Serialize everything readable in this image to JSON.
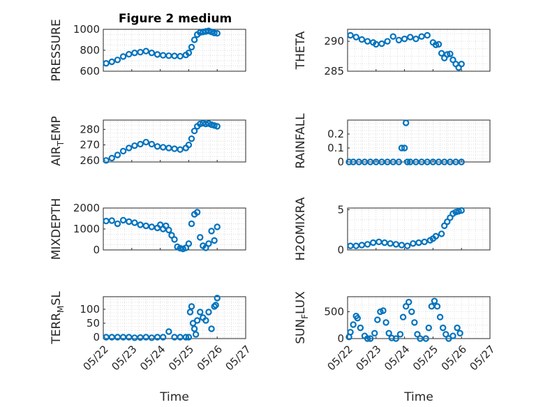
{
  "figure_title": "Figure 2 medium",
  "marker_color": "#0072BD",
  "chart_data": [
    {
      "type": "scatter",
      "ylabel": "PRESSURE",
      "xlabel": "",
      "ylim": [
        600,
        1000
      ],
      "yticks": [
        600,
        800,
        1000
      ],
      "xticks": [
        "05/22",
        "05/23",
        "05/24",
        "05/25",
        "05/26",
        "05/27"
      ],
      "xlim_days": [
        22,
        27
      ],
      "grid": true,
      "points": [
        [
          22.1,
          675
        ],
        [
          22.3,
          690
        ],
        [
          22.5,
          708
        ],
        [
          22.7,
          740
        ],
        [
          22.9,
          762
        ],
        [
          23.1,
          775
        ],
        [
          23.3,
          782
        ],
        [
          23.5,
          792
        ],
        [
          23.7,
          775
        ],
        [
          23.9,
          760
        ],
        [
          24.1,
          752
        ],
        [
          24.3,
          748
        ],
        [
          24.5,
          746
        ],
        [
          24.7,
          743
        ],
        [
          24.9,
          755
        ],
        [
          25.0,
          775
        ],
        [
          25.1,
          830
        ],
        [
          25.2,
          900
        ],
        [
          25.3,
          950
        ],
        [
          25.4,
          970
        ],
        [
          25.5,
          975
        ],
        [
          25.6,
          980
        ],
        [
          25.7,
          985
        ],
        [
          25.8,
          975
        ],
        [
          25.9,
          965
        ],
        [
          26.0,
          962
        ]
      ]
    },
    {
      "type": "scatter",
      "ylabel": "THETA",
      "xlabel": "",
      "ylim": [
        285,
        292
      ],
      "yticks": [
        285,
        290
      ],
      "xticks": [
        "05/22",
        "05/23",
        "05/24",
        "05/25",
        "05/26",
        "05/27"
      ],
      "xlim_days": [
        22,
        27
      ],
      "grid": true,
      "points": [
        [
          22.1,
          291.0
        ],
        [
          22.3,
          290.7
        ],
        [
          22.5,
          290.3
        ],
        [
          22.7,
          290.0
        ],
        [
          22.9,
          289.8
        ],
        [
          23.0,
          289.5
        ],
        [
          23.2,
          289.6
        ],
        [
          23.4,
          290.0
        ],
        [
          23.6,
          290.8
        ],
        [
          23.8,
          290.2
        ],
        [
          24.0,
          290.4
        ],
        [
          24.2,
          290.7
        ],
        [
          24.4,
          290.4
        ],
        [
          24.6,
          290.8
        ],
        [
          24.8,
          291.0
        ],
        [
          25.0,
          289.8
        ],
        [
          25.1,
          289.4
        ],
        [
          25.2,
          289.5
        ],
        [
          25.3,
          288.0
        ],
        [
          25.4,
          287.2
        ],
        [
          25.5,
          287.8
        ],
        [
          25.6,
          287.9
        ],
        [
          25.7,
          286.9
        ],
        [
          25.8,
          286.2
        ],
        [
          25.9,
          285.6
        ],
        [
          26.0,
          286.2
        ]
      ]
    },
    {
      "type": "scatter",
      "ylabel": "AIR_TEMP",
      "ylabel_main": "AIR",
      "ylabel_sub": "T",
      "ylabel_rest": "EMP",
      "xlabel": "",
      "ylim": [
        259,
        286
      ],
      "yticks": [
        260,
        270,
        280
      ],
      "xticks": [
        "05/22",
        "05/23",
        "05/24",
        "05/25",
        "05/26",
        "05/27"
      ],
      "xlim_days": [
        22,
        27
      ],
      "grid": true,
      "points": [
        [
          22.1,
          260.0
        ],
        [
          22.3,
          261.5
        ],
        [
          22.5,
          263.5
        ],
        [
          22.7,
          266.0
        ],
        [
          22.9,
          268.0
        ],
        [
          23.1,
          269.5
        ],
        [
          23.3,
          270.5
        ],
        [
          23.5,
          271.8
        ],
        [
          23.7,
          270.5
        ],
        [
          23.9,
          269.0
        ],
        [
          24.1,
          268.5
        ],
        [
          24.3,
          268.0
        ],
        [
          24.5,
          267.5
        ],
        [
          24.7,
          267.0
        ],
        [
          24.9,
          268.0
        ],
        [
          25.0,
          270.0
        ],
        [
          25.1,
          274.0
        ],
        [
          25.2,
          279.0
        ],
        [
          25.3,
          282.0
        ],
        [
          25.4,
          283.5
        ],
        [
          25.5,
          284.0
        ],
        [
          25.6,
          283.5
        ],
        [
          25.7,
          283.8
        ],
        [
          25.8,
          283.0
        ],
        [
          25.9,
          282.5
        ],
        [
          26.0,
          282.0
        ]
      ]
    },
    {
      "type": "scatter",
      "ylabel": "RAINFALL",
      "xlabel": "",
      "ylim": [
        0,
        0.3
      ],
      "yticks": [
        0,
        0.1,
        0.2
      ],
      "xticks": [
        "05/22",
        "05/23",
        "05/24",
        "05/25",
        "05/26",
        "05/27"
      ],
      "xlim_days": [
        22,
        27
      ],
      "grid": true,
      "points": [
        [
          22.05,
          0
        ],
        [
          22.2,
          0
        ],
        [
          22.4,
          0
        ],
        [
          22.6,
          0
        ],
        [
          22.8,
          0
        ],
        [
          23.0,
          0
        ],
        [
          23.2,
          0
        ],
        [
          23.4,
          0
        ],
        [
          23.6,
          0
        ],
        [
          23.8,
          0
        ],
        [
          23.9,
          0.1
        ],
        [
          24.0,
          0.1
        ],
        [
          24.05,
          0.28
        ],
        [
          24.1,
          0
        ],
        [
          24.2,
          0
        ],
        [
          24.4,
          0
        ],
        [
          24.6,
          0
        ],
        [
          24.8,
          0
        ],
        [
          25.0,
          0
        ],
        [
          25.2,
          0
        ],
        [
          25.4,
          0
        ],
        [
          25.6,
          0
        ],
        [
          25.8,
          0
        ],
        [
          26.0,
          0
        ]
      ]
    },
    {
      "type": "scatter",
      "ylabel": "MIXDEPTH",
      "xlabel": "",
      "ylim": [
        0,
        2000
      ],
      "yticks": [
        0,
        1000,
        2000
      ],
      "xticks": [
        "05/22",
        "05/23",
        "05/24",
        "05/25",
        "05/26",
        "05/27"
      ],
      "xlim_days": [
        22,
        27
      ],
      "grid": true,
      "points": [
        [
          22.1,
          1380
        ],
        [
          22.3,
          1400
        ],
        [
          22.5,
          1250
        ],
        [
          22.7,
          1420
        ],
        [
          22.9,
          1350
        ],
        [
          23.1,
          1300
        ],
        [
          23.3,
          1200
        ],
        [
          23.5,
          1150
        ],
        [
          23.7,
          1100
        ],
        [
          23.9,
          1050
        ],
        [
          24.0,
          1200
        ],
        [
          24.1,
          1000
        ],
        [
          24.2,
          1150
        ],
        [
          24.3,
          950
        ],
        [
          24.4,
          700
        ],
        [
          24.5,
          500
        ],
        [
          24.6,
          150
        ],
        [
          24.7,
          80
        ],
        [
          24.8,
          50
        ],
        [
          24.9,
          100
        ],
        [
          25.0,
          300
        ],
        [
          25.1,
          1250
        ],
        [
          25.2,
          1700
        ],
        [
          25.3,
          1800
        ],
        [
          25.4,
          600
        ],
        [
          25.5,
          200
        ],
        [
          25.6,
          100
        ],
        [
          25.7,
          300
        ],
        [
          25.8,
          900
        ],
        [
          25.9,
          450
        ],
        [
          26.0,
          1100
        ]
      ]
    },
    {
      "type": "scatter",
      "ylabel": "H2OMIXRA",
      "xlabel": "",
      "ylim": [
        0,
        5.2
      ],
      "yticks": [
        0,
        5
      ],
      "xticks": [
        "05/22",
        "05/23",
        "05/24",
        "05/25",
        "05/26",
        "05/27"
      ],
      "xlim_days": [
        22,
        27
      ],
      "grid": true,
      "points": [
        [
          22.1,
          0.5
        ],
        [
          22.3,
          0.5
        ],
        [
          22.5,
          0.6
        ],
        [
          22.7,
          0.7
        ],
        [
          22.9,
          0.9
        ],
        [
          23.1,
          1.0
        ],
        [
          23.3,
          0.9
        ],
        [
          23.5,
          0.8
        ],
        [
          23.7,
          0.7
        ],
        [
          23.9,
          0.6
        ],
        [
          24.1,
          0.5
        ],
        [
          24.3,
          0.8
        ],
        [
          24.5,
          0.9
        ],
        [
          24.7,
          1.0
        ],
        [
          24.9,
          1.2
        ],
        [
          25.0,
          1.4
        ],
        [
          25.1,
          1.7
        ],
        [
          25.3,
          2.0
        ],
        [
          25.4,
          3.0
        ],
        [
          25.5,
          3.5
        ],
        [
          25.6,
          4.0
        ],
        [
          25.7,
          4.5
        ],
        [
          25.8,
          4.7
        ],
        [
          25.9,
          4.8
        ],
        [
          26.0,
          4.9
        ]
      ]
    },
    {
      "type": "scatter",
      "ylabel": "TERR_MSL",
      "ylabel_main": "TERR",
      "ylabel_sub": "M",
      "ylabel_rest": "SL",
      "xlabel": "Time",
      "ylim": [
        -5,
        145
      ],
      "yticks": [
        0,
        50,
        100
      ],
      "xticks": [
        "05/22",
        "05/23",
        "05/24",
        "05/25",
        "05/26",
        "05/27"
      ],
      "xlim_days": [
        22,
        27
      ],
      "grid": true,
      "points": [
        [
          22.1,
          0
        ],
        [
          22.3,
          0
        ],
        [
          22.5,
          0
        ],
        [
          22.7,
          0
        ],
        [
          22.9,
          0
        ],
        [
          23.1,
          -2
        ],
        [
          23.3,
          -1
        ],
        [
          23.5,
          0
        ],
        [
          23.7,
          -2
        ],
        [
          23.9,
          0
        ],
        [
          24.1,
          0
        ],
        [
          24.3,
          20
        ],
        [
          24.5,
          0
        ],
        [
          24.7,
          0
        ],
        [
          24.9,
          0
        ],
        [
          25.0,
          0
        ],
        [
          25.05,
          90
        ],
        [
          25.1,
          110
        ],
        [
          25.15,
          50
        ],
        [
          25.2,
          30
        ],
        [
          25.25,
          10
        ],
        [
          25.3,
          60
        ],
        [
          25.4,
          90
        ],
        [
          25.5,
          70
        ],
        [
          25.6,
          60
        ],
        [
          25.7,
          90
        ],
        [
          25.8,
          30
        ],
        [
          25.9,
          110
        ],
        [
          25.95,
          115
        ],
        [
          26.0,
          140
        ]
      ]
    },
    {
      "type": "scatter",
      "ylabel": "SUN_FLUX",
      "ylabel_main": "SUN",
      "ylabel_sub": "F",
      "ylabel_rest": "LUX",
      "xlabel": "Time",
      "ylim": [
        0,
        780
      ],
      "yticks": [
        0,
        500
      ],
      "xticks": [
        "05/22",
        "05/23",
        "05/24",
        "05/25",
        "05/26",
        "05/27"
      ],
      "xlim_days": [
        22,
        27
      ],
      "grid": true,
      "points": [
        [
          22.05,
          30
        ],
        [
          22.1,
          120
        ],
        [
          22.2,
          260
        ],
        [
          22.3,
          420
        ],
        [
          22.35,
          380
        ],
        [
          22.45,
          200
        ],
        [
          22.6,
          50
        ],
        [
          22.7,
          0
        ],
        [
          22.8,
          0
        ],
        [
          22.95,
          100
        ],
        [
          23.05,
          350
        ],
        [
          23.15,
          500
        ],
        [
          23.25,
          520
        ],
        [
          23.35,
          300
        ],
        [
          23.45,
          100
        ],
        [
          23.55,
          10
        ],
        [
          23.7,
          0
        ],
        [
          23.85,
          80
        ],
        [
          23.95,
          400
        ],
        [
          24.05,
          600
        ],
        [
          24.15,
          680
        ],
        [
          24.25,
          500
        ],
        [
          24.35,
          300
        ],
        [
          24.45,
          80
        ],
        [
          24.55,
          0
        ],
        [
          24.75,
          0
        ],
        [
          24.85,
          200
        ],
        [
          24.95,
          600
        ],
        [
          25.05,
          700
        ],
        [
          25.15,
          600
        ],
        [
          25.25,
          400
        ],
        [
          25.35,
          200
        ],
        [
          25.45,
          80
        ],
        [
          25.55,
          0
        ],
        [
          25.7,
          50
        ],
        [
          25.85,
          200
        ],
        [
          25.95,
          100
        ]
      ]
    }
  ]
}
